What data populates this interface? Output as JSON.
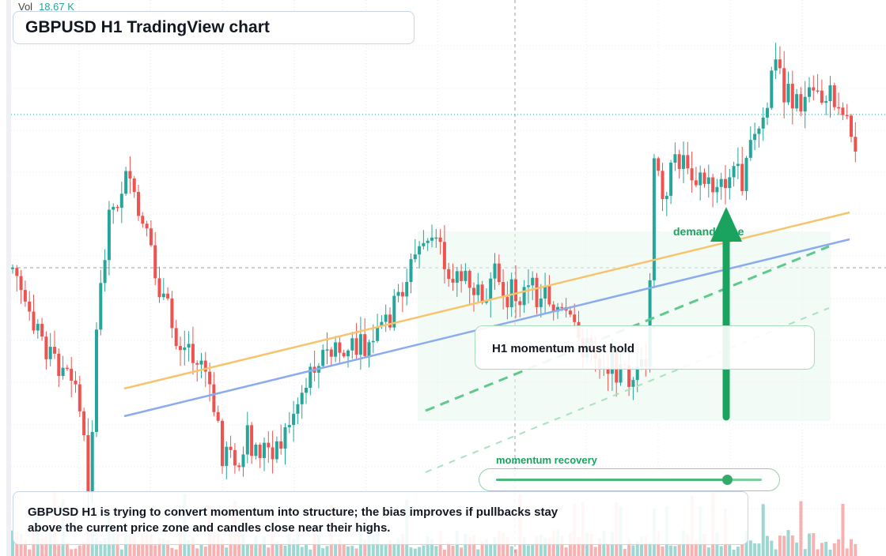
{
  "header": {
    "title": "GBPUSD H1 TradingView chart",
    "volume_label": "Vol",
    "volume_value": "18.67 K"
  },
  "annotations": {
    "callout": "H1 momentum must hold",
    "zone_label": "demand zone",
    "momentum_label": "momentum recovery",
    "momentum_level": 0.87,
    "summary_line1": "GBPUSD H1 is trying to convert momentum into structure; the bias improves if pullbacks stay",
    "summary_line2": "above the current price zone and candles close near their highs."
  },
  "colors": {
    "up": "#26a69a",
    "down": "#ef5350",
    "trend_orange": "#f7c46c",
    "trend_blue": "#8aacee",
    "accent_green": "#1aa35f"
  },
  "chart_data": {
    "type": "candlestick",
    "title": "GBPUSD H1 TradingView chart",
    "symbol": "GBPUSD",
    "timeframe": "H1",
    "grid": true,
    "indicators": [
      "volume",
      "trendlines",
      "demand zone"
    ],
    "last_volume": "18.67 K"
  }
}
